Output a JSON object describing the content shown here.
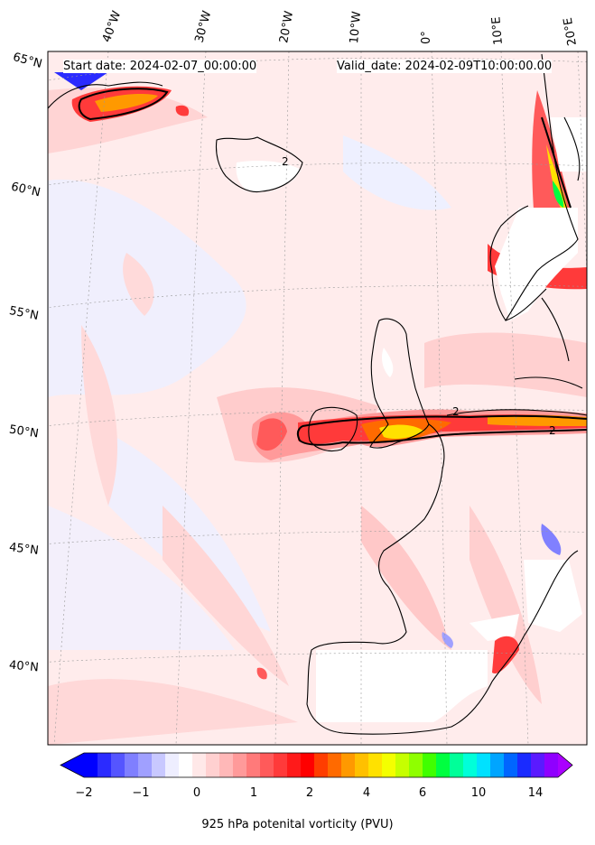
{
  "header": {
    "start_date": "Start date: 2024-02-07_00:00:00",
    "valid_date": "Valid_date: 2024-02-09T10:00:00.00"
  },
  "latitude_labels": [
    "65°N",
    "60°N",
    "55°N",
    "50°N",
    "45°N",
    "40°N"
  ],
  "longitude_labels": [
    "40°W",
    "30°W",
    "20°W",
    "10°W",
    "0°",
    "10°E",
    "20°E"
  ],
  "contour_labels": [
    "2",
    "2",
    "2"
  ],
  "colorbar": {
    "label": "925 hPa potenital vorticity (PVU)",
    "ticks": [
      "−2",
      "−1",
      "0",
      "1",
      "2",
      "4",
      "6",
      "10",
      "14"
    ],
    "colors": [
      "#0000ff",
      "#2b2bff",
      "#5555ff",
      "#7f7fff",
      "#a0a0ff",
      "#c8c8ff",
      "#eeeeff",
      "#ffffff",
      "#ffe8e8",
      "#ffd0d0",
      "#ffb8b8",
      "#ff9a9a",
      "#ff7a7a",
      "#ff5a5a",
      "#ff3a3a",
      "#ff1a1a",
      "#ff0000",
      "#ff3d00",
      "#ff6a00",
      "#ff9900",
      "#ffc000",
      "#ffe100",
      "#f4ff00",
      "#c6ff00",
      "#8fff00",
      "#40ff00",
      "#00ff40",
      "#00ff99",
      "#00ffd9",
      "#00e1ff",
      "#00a5ff",
      "#0066ff",
      "#1a2bff",
      "#5a1aff",
      "#8f00ff"
    ],
    "under_color": "#0000ff",
    "over_color": "#aa00ff"
  }
}
